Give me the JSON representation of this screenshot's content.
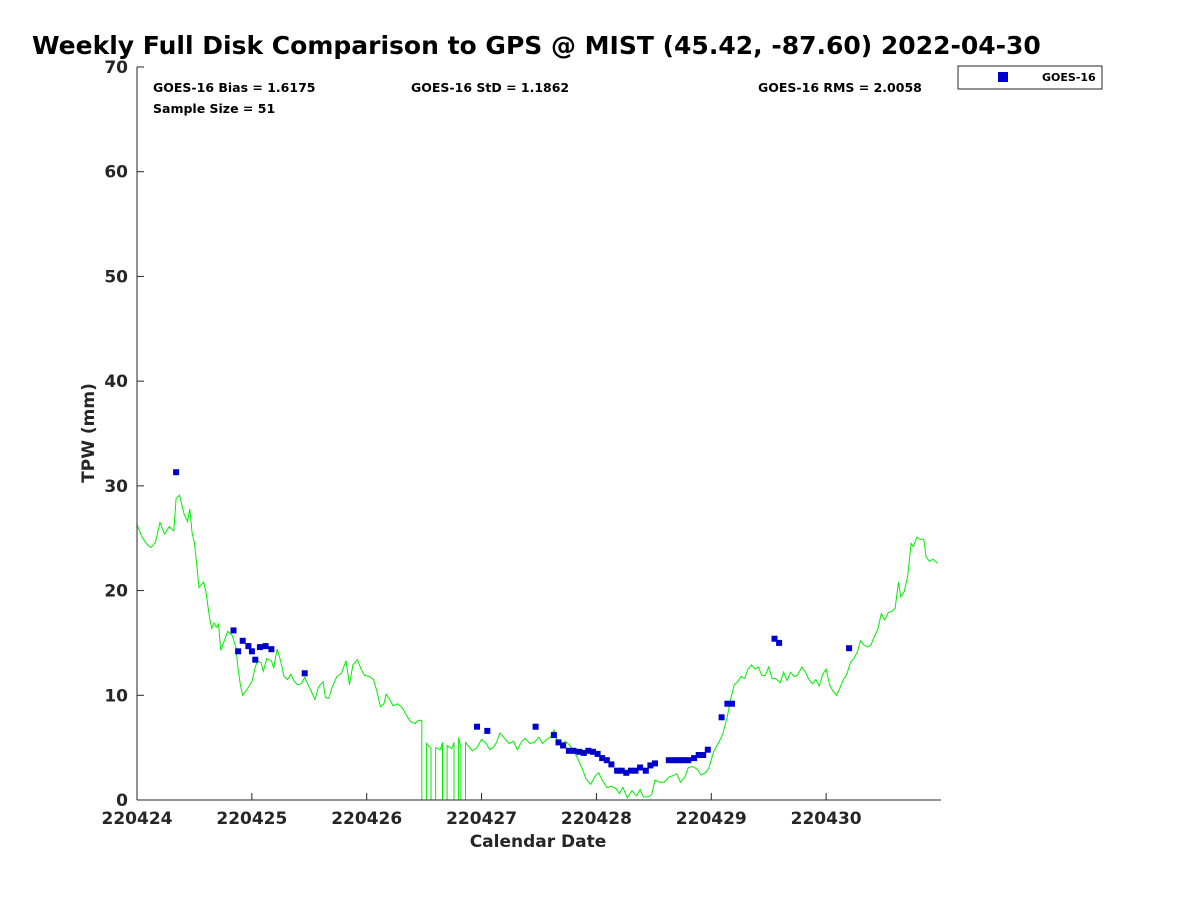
{
  "chart_data": {
    "type": "scatter",
    "title": "Weekly Full Disk Comparison to GPS @ MIST (45.42, -87.60) 2022-04-30",
    "xlabel": "Calendar Date",
    "ylabel": "TPW (mm)",
    "xlim": [
      0,
      7
    ],
    "ylim": [
      0,
      70
    ],
    "x_ticks": [
      {
        "value": 0,
        "label": "220424"
      },
      {
        "value": 1,
        "label": "220425"
      },
      {
        "value": 2,
        "label": "220426"
      },
      {
        "value": 3,
        "label": "220427"
      },
      {
        "value": 4,
        "label": "220428"
      },
      {
        "value": 5,
        "label": "220429"
      },
      {
        "value": 6,
        "label": "220430"
      }
    ],
    "y_ticks": [
      0,
      10,
      20,
      30,
      40,
      50,
      60,
      70
    ],
    "stats": {
      "bias": "GOES-16 Bias = 1.6175",
      "std": "GOES-16 StD = 1.1862",
      "rms": "GOES-16 RMS = 2.0058",
      "sample": "Sample Size = 51"
    },
    "legend": {
      "position": "outside-top-right",
      "entries": [
        {
          "label": "GOES-16",
          "color": "#0000cc",
          "marker": "square"
        }
      ]
    },
    "series": [
      {
        "name": "GOES-16",
        "color": "#0000cc",
        "marker": "square",
        "points": [
          [
            0.34,
            31.3
          ],
          [
            0.84,
            16.2
          ],
          [
            0.88,
            14.2
          ],
          [
            0.92,
            15.2
          ],
          [
            0.97,
            14.7
          ],
          [
            1.0,
            14.2
          ],
          [
            1.03,
            13.4
          ],
          [
            1.07,
            14.6
          ],
          [
            1.12,
            14.7
          ],
          [
            1.17,
            14.4
          ],
          [
            1.46,
            12.1
          ],
          [
            2.96,
            7.0
          ],
          [
            3.05,
            6.6
          ],
          [
            3.47,
            7.0
          ],
          [
            3.63,
            6.2
          ],
          [
            3.67,
            5.5
          ],
          [
            3.71,
            5.2
          ],
          [
            3.76,
            4.7
          ],
          [
            3.8,
            4.7
          ],
          [
            3.85,
            4.6
          ],
          [
            3.89,
            4.5
          ],
          [
            3.93,
            4.7
          ],
          [
            3.97,
            4.6
          ],
          [
            4.01,
            4.4
          ],
          [
            4.05,
            4.0
          ],
          [
            4.09,
            3.8
          ],
          [
            4.13,
            3.4
          ],
          [
            4.18,
            2.8
          ],
          [
            4.22,
            2.8
          ],
          [
            4.26,
            2.6
          ],
          [
            4.3,
            2.8
          ],
          [
            4.34,
            2.8
          ],
          [
            4.38,
            3.1
          ],
          [
            4.43,
            2.8
          ],
          [
            4.47,
            3.3
          ],
          [
            4.51,
            3.5
          ],
          [
            4.63,
            3.8
          ],
          [
            4.68,
            3.8
          ],
          [
            4.72,
            3.8
          ],
          [
            4.76,
            3.8
          ],
          [
            4.8,
            3.8
          ],
          [
            4.85,
            4.0
          ],
          [
            4.89,
            4.3
          ],
          [
            4.93,
            4.3
          ],
          [
            4.97,
            4.8
          ],
          [
            5.09,
            7.9
          ],
          [
            5.14,
            9.2
          ],
          [
            5.18,
            9.2
          ],
          [
            5.55,
            15.4
          ],
          [
            5.59,
            15.0
          ],
          [
            6.2,
            14.5
          ]
        ]
      }
    ],
    "reference_line": {
      "color": "#00ee00",
      "points": [
        [
          0.0,
          26.3
        ],
        [
          0.04,
          25.2
        ],
        [
          0.08,
          24.5
        ],
        [
          0.12,
          24.1
        ],
        [
          0.16,
          24.6
        ],
        [
          0.2,
          26.5
        ],
        [
          0.24,
          25.4
        ],
        [
          0.28,
          26.1
        ],
        [
          0.32,
          25.7
        ],
        [
          0.34,
          28.8
        ],
        [
          0.37,
          29.1
        ],
        [
          0.41,
          27.3
        ],
        [
          0.44,
          26.6
        ],
        [
          0.46,
          27.8
        ],
        [
          0.48,
          25.5
        ],
        [
          0.5,
          24.6
        ],
        [
          0.52,
          22.5
        ],
        [
          0.54,
          20.3
        ],
        [
          0.58,
          20.8
        ],
        [
          0.6,
          19.9
        ],
        [
          0.63,
          17.5
        ],
        [
          0.65,
          16.4
        ],
        [
          0.67,
          16.9
        ],
        [
          0.69,
          16.5
        ],
        [
          0.71,
          16.8
        ],
        [
          0.73,
          14.3
        ],
        [
          0.76,
          15.2
        ],
        [
          0.79,
          16.1
        ],
        [
          0.83,
          15.7
        ],
        [
          0.86,
          14.6
        ],
        [
          0.88,
          12.5
        ],
        [
          0.9,
          11.0
        ],
        [
          0.92,
          10.0
        ],
        [
          0.96,
          10.6
        ],
        [
          1.0,
          11.3
        ],
        [
          1.03,
          12.7
        ],
        [
          1.05,
          13.3
        ],
        [
          1.08,
          13.1
        ],
        [
          1.1,
          12.3
        ],
        [
          1.13,
          13.5
        ],
        [
          1.17,
          13.3
        ],
        [
          1.19,
          12.6
        ],
        [
          1.22,
          14.4
        ],
        [
          1.25,
          13.3
        ],
        [
          1.28,
          11.8
        ],
        [
          1.31,
          11.5
        ],
        [
          1.34,
          12.0
        ],
        [
          1.37,
          11.3
        ],
        [
          1.4,
          11.0
        ],
        [
          1.43,
          11.1
        ],
        [
          1.46,
          11.7
        ],
        [
          1.49,
          11.0
        ],
        [
          1.52,
          10.3
        ],
        [
          1.55,
          9.6
        ],
        [
          1.58,
          10.8
        ],
        [
          1.62,
          11.3
        ],
        [
          1.64,
          9.8
        ],
        [
          1.67,
          9.7
        ],
        [
          1.7,
          10.8
        ],
        [
          1.74,
          11.8
        ],
        [
          1.78,
          12.1
        ],
        [
          1.82,
          13.3
        ],
        [
          1.85,
          11.0
        ],
        [
          1.88,
          12.9
        ],
        [
          1.92,
          13.4
        ],
        [
          1.95,
          12.5
        ],
        [
          1.98,
          11.9
        ],
        [
          2.02,
          11.8
        ],
        [
          2.06,
          11.5
        ],
        [
          2.09,
          10.3
        ],
        [
          2.12,
          8.9
        ],
        [
          2.15,
          9.2
        ],
        [
          2.17,
          10.1
        ],
        [
          2.2,
          9.6
        ],
        [
          2.23,
          9.0
        ],
        [
          2.27,
          9.2
        ],
        [
          2.31,
          8.8
        ],
        [
          2.35,
          8.0
        ],
        [
          2.38,
          7.5
        ],
        [
          2.42,
          7.3
        ],
        [
          2.45,
          7.6
        ],
        [
          2.48,
          7.6
        ],
        [
          2.48,
          0.0
        ],
        [
          2.52,
          0.0
        ],
        [
          2.52,
          5.4
        ],
        [
          2.56,
          4.9
        ],
        [
          2.56,
          0.0
        ],
        [
          2.6,
          0.0
        ],
        [
          2.6,
          5.0
        ],
        [
          2.64,
          4.8
        ],
        [
          2.66,
          5.5
        ],
        [
          2.66,
          0.0
        ],
        [
          2.7,
          0.0
        ],
        [
          2.7,
          5.2
        ],
        [
          2.74,
          4.9
        ],
        [
          2.76,
          5.5
        ],
        [
          2.76,
          0.0
        ],
        [
          2.8,
          0.0
        ],
        [
          2.8,
          6.0
        ],
        [
          2.82,
          5.0
        ],
        [
          2.82,
          0.0
        ],
        [
          2.86,
          0.0
        ],
        [
          2.86,
          5.5
        ],
        [
          2.92,
          4.7
        ],
        [
          2.96,
          5.0
        ],
        [
          3.0,
          5.8
        ],
        [
          3.04,
          5.4
        ],
        [
          3.07,
          4.8
        ],
        [
          3.1,
          5.0
        ],
        [
          3.13,
          5.5
        ],
        [
          3.16,
          6.4
        ],
        [
          3.2,
          5.9
        ],
        [
          3.24,
          5.4
        ],
        [
          3.28,
          5.6
        ],
        [
          3.31,
          4.8
        ],
        [
          3.35,
          5.6
        ],
        [
          3.38,
          5.9
        ],
        [
          3.42,
          5.4
        ],
        [
          3.46,
          5.5
        ],
        [
          3.5,
          6.0
        ],
        [
          3.53,
          5.4
        ],
        [
          3.57,
          5.8
        ],
        [
          3.6,
          6.0
        ],
        [
          3.63,
          6.7
        ],
        [
          3.67,
          5.3
        ],
        [
          3.7,
          5.4
        ],
        [
          3.73,
          5.6
        ],
        [
          3.77,
          5.2
        ],
        [
          3.8,
          4.7
        ],
        [
          3.84,
          3.9
        ],
        [
          3.88,
          2.9
        ],
        [
          3.91,
          2.0
        ],
        [
          3.95,
          1.5
        ],
        [
          3.99,
          2.3
        ],
        [
          4.02,
          2.6
        ],
        [
          4.05,
          1.9
        ],
        [
          4.09,
          1.2
        ],
        [
          4.13,
          1.3
        ],
        [
          4.17,
          1.1
        ],
        [
          4.2,
          0.6
        ],
        [
          4.23,
          1.2
        ],
        [
          4.27,
          0.2
        ],
        [
          4.31,
          0.9
        ],
        [
          4.35,
          0.4
        ],
        [
          4.38,
          1.0
        ],
        [
          4.41,
          0.3
        ],
        [
          4.45,
          0.3
        ],
        [
          4.48,
          0.5
        ],
        [
          4.51,
          1.9
        ],
        [
          4.55,
          1.7
        ],
        [
          4.59,
          1.7
        ],
        [
          4.63,
          2.2
        ],
        [
          4.66,
          2.3
        ],
        [
          4.7,
          2.5
        ],
        [
          4.73,
          1.7
        ],
        [
          4.77,
          2.2
        ],
        [
          4.8,
          3.1
        ],
        [
          4.84,
          3.2
        ],
        [
          4.88,
          2.9
        ],
        [
          4.91,
          2.4
        ],
        [
          4.95,
          2.6
        ],
        [
          4.98,
          3.1
        ],
        [
          5.02,
          4.6
        ],
        [
          5.06,
          5.4
        ],
        [
          5.1,
          6.3
        ],
        [
          5.14,
          8.0
        ],
        [
          5.17,
          9.7
        ],
        [
          5.2,
          11.0
        ],
        [
          5.23,
          11.3
        ],
        [
          5.26,
          11.8
        ],
        [
          5.29,
          11.6
        ],
        [
          5.32,
          12.5
        ],
        [
          5.35,
          12.9
        ],
        [
          5.38,
          12.5
        ],
        [
          5.41,
          12.7
        ],
        [
          5.44,
          11.9
        ],
        [
          5.47,
          11.9
        ],
        [
          5.5,
          12.7
        ],
        [
          5.53,
          11.6
        ],
        [
          5.56,
          11.6
        ],
        [
          5.6,
          11.2
        ],
        [
          5.63,
          12.2
        ],
        [
          5.66,
          11.4
        ],
        [
          5.69,
          12.2
        ],
        [
          5.72,
          11.8
        ],
        [
          5.75,
          11.9
        ],
        [
          5.79,
          12.7
        ],
        [
          5.82,
          12.2
        ],
        [
          5.85,
          11.5
        ],
        [
          5.88,
          11.1
        ],
        [
          5.91,
          11.5
        ],
        [
          5.94,
          10.9
        ],
        [
          5.97,
          12.0
        ],
        [
          6.0,
          12.5
        ],
        [
          6.03,
          11.0
        ],
        [
          6.06,
          10.4
        ],
        [
          6.09,
          10.0
        ],
        [
          6.12,
          10.7
        ],
        [
          6.15,
          11.5
        ],
        [
          6.18,
          12.0
        ],
        [
          6.21,
          13.1
        ],
        [
          6.24,
          13.5
        ],
        [
          6.27,
          14.1
        ],
        [
          6.3,
          15.2
        ],
        [
          6.33,
          14.8
        ],
        [
          6.36,
          14.6
        ],
        [
          6.39,
          14.8
        ],
        [
          6.42,
          15.6
        ],
        [
          6.45,
          16.3
        ],
        [
          6.48,
          17.8
        ],
        [
          6.51,
          17.2
        ],
        [
          6.54,
          17.9
        ],
        [
          6.57,
          18.0
        ],
        [
          6.6,
          18.3
        ],
        [
          6.63,
          20.8
        ],
        [
          6.65,
          19.4
        ],
        [
          6.68,
          19.9
        ],
        [
          6.71,
          21.4
        ],
        [
          6.74,
          24.5
        ],
        [
          6.76,
          24.2
        ],
        [
          6.79,
          25.1
        ],
        [
          6.82,
          24.9
        ],
        [
          6.85,
          24.9
        ],
        [
          6.87,
          23.2
        ],
        [
          6.9,
          22.8
        ],
        [
          6.93,
          23.0
        ],
        [
          6.97,
          22.6
        ]
      ]
    }
  }
}
